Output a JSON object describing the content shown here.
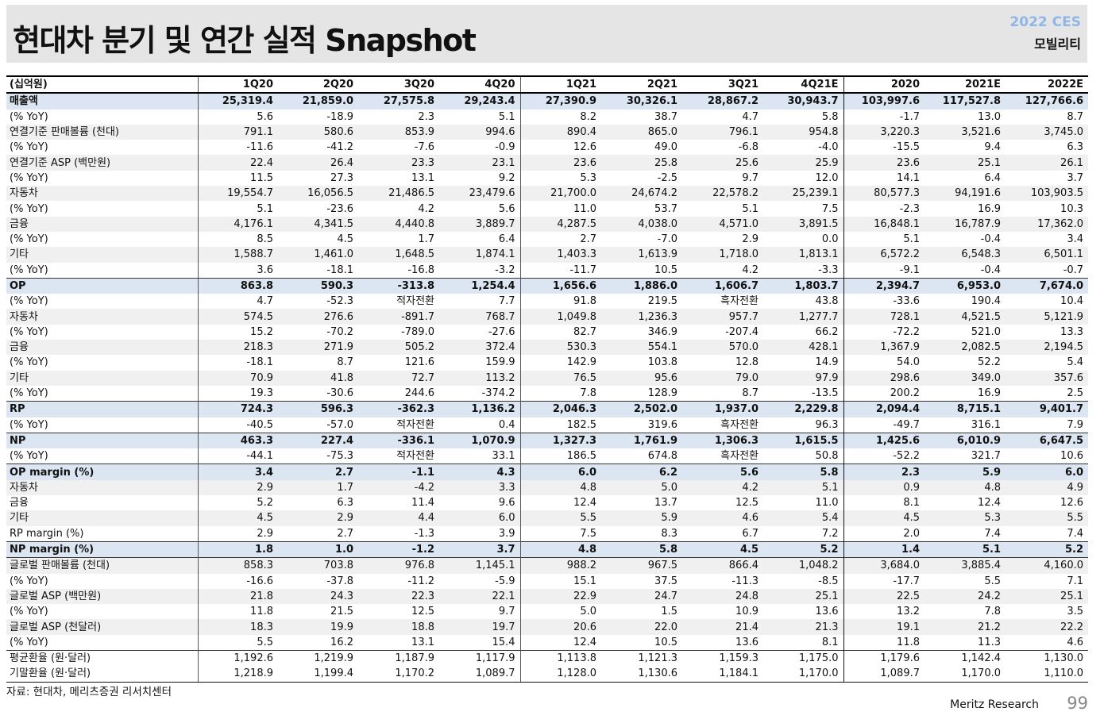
{
  "header": {
    "title": "현대차 분기 및 연간 실적 Snapshot",
    "tag_top": "2022 CES",
    "tag_bottom": "모빌리티"
  },
  "table": {
    "unit_label": "(십억원)",
    "columns": [
      "1Q20",
      "2Q20",
      "3Q20",
      "4Q20",
      "1Q21",
      "2Q21",
      "3Q21",
      "4Q21E",
      "2020",
      "2021E",
      "2022E"
    ],
    "rows": [
      {
        "label": "매출액",
        "values": [
          "25,319.4",
          "21,859.0",
          "27,575.8",
          "29,243.4",
          "27,390.9",
          "30,326.1",
          "28,867.2",
          "30,943.7",
          "103,997.6",
          "117,527.8",
          "127,766.6"
        ]
      },
      {
        "label": "(% YoY)",
        "values": [
          "5.6",
          "-18.9",
          "2.3",
          "5.1",
          "8.2",
          "38.7",
          "4.7",
          "5.8",
          "-1.7",
          "13.0",
          "8.7"
        ]
      },
      {
        "label": "연결기준 판매볼륨 (천대)",
        "values": [
          "791.1",
          "580.6",
          "853.9",
          "994.6",
          "890.4",
          "865.0",
          "796.1",
          "954.8",
          "3,220.3",
          "3,521.6",
          "3,745.0"
        ]
      },
      {
        "label": "(% YoY)",
        "values": [
          "-11.6",
          "-41.2",
          "-7.6",
          "-0.9",
          "12.6",
          "49.0",
          "-6.8",
          "-4.0",
          "-15.5",
          "9.4",
          "6.3"
        ]
      },
      {
        "label": "연결기준 ASP (백만원)",
        "values": [
          "22.4",
          "26.4",
          "23.3",
          "23.1",
          "23.6",
          "25.8",
          "25.6",
          "25.9",
          "23.6",
          "25.1",
          "26.1"
        ]
      },
      {
        "label": "(% YoY)",
        "values": [
          "11.5",
          "27.3",
          "13.1",
          "9.2",
          "5.3",
          "-2.5",
          "9.7",
          "12.0",
          "14.1",
          "6.4",
          "3.7"
        ]
      },
      {
        "label": "자동차",
        "values": [
          "19,554.7",
          "16,056.5",
          "21,486.5",
          "23,479.6",
          "21,700.0",
          "24,674.2",
          "22,578.2",
          "25,239.1",
          "80,577.3",
          "94,191.6",
          "103,903.5"
        ]
      },
      {
        "label": "(% YoY)",
        "values": [
          "5.1",
          "-23.6",
          "4.2",
          "5.6",
          "11.0",
          "53.7",
          "5.1",
          "7.5",
          "-2.3",
          "16.9",
          "10.3"
        ]
      },
      {
        "label": "금융",
        "values": [
          "4,176.1",
          "4,341.5",
          "4,440.8",
          "3,889.7",
          "4,287.5",
          "4,038.0",
          "4,571.0",
          "3,891.5",
          "16,848.1",
          "16,787.9",
          "17,362.0"
        ]
      },
      {
        "label": "(% YoY)",
        "values": [
          "8.5",
          "4.5",
          "1.7",
          "6.4",
          "2.7",
          "-7.0",
          "2.9",
          "0.0",
          "5.1",
          "-0.4",
          "3.4"
        ]
      },
      {
        "label": "기타",
        "values": [
          "1,588.7",
          "1,461.0",
          "1,648.5",
          "1,874.1",
          "1,403.3",
          "1,613.9",
          "1,718.0",
          "1,813.1",
          "6,572.2",
          "6,548.3",
          "6,501.1"
        ]
      },
      {
        "label": "(% YoY)",
        "values": [
          "3.6",
          "-18.1",
          "-16.8",
          "-3.2",
          "-11.7",
          "10.5",
          "4.2",
          "-3.3",
          "-9.1",
          "-0.4",
          "-0.7"
        ]
      },
      {
        "label": "OP",
        "values": [
          "863.8",
          "590.3",
          "-313.8",
          "1,254.4",
          "1,656.6",
          "1,886.0",
          "1,606.7",
          "1,803.7",
          "2,394.7",
          "6,953.0",
          "7,674.0"
        ]
      },
      {
        "label": "(% YoY)",
        "values": [
          "4.7",
          "-52.3",
          "적자전환",
          "7.7",
          "91.8",
          "219.5",
          "흑자전환",
          "43.8",
          "-33.6",
          "190.4",
          "10.4"
        ]
      },
      {
        "label": "자동차",
        "values": [
          "574.5",
          "276.6",
          "-891.7",
          "768.7",
          "1,049.8",
          "1,236.3",
          "957.7",
          "1,277.7",
          "728.1",
          "4,521.5",
          "5,121.9"
        ]
      },
      {
        "label": "(% YoY)",
        "values": [
          "15.2",
          "-70.2",
          "-789.0",
          "-27.6",
          "82.7",
          "346.9",
          "-207.4",
          "66.2",
          "-72.2",
          "521.0",
          "13.3"
        ]
      },
      {
        "label": "금융",
        "values": [
          "218.3",
          "271.9",
          "505.2",
          "372.4",
          "530.3",
          "554.1",
          "570.0",
          "428.1",
          "1,367.9",
          "2,082.5",
          "2,194.5"
        ]
      },
      {
        "label": "(% YoY)",
        "values": [
          "-18.1",
          "8.7",
          "121.6",
          "159.9",
          "142.9",
          "103.8",
          "12.8",
          "14.9",
          "54.0",
          "52.2",
          "5.4"
        ]
      },
      {
        "label": "기타",
        "values": [
          "70.9",
          "41.8",
          "72.7",
          "113.2",
          "76.5",
          "95.6",
          "79.0",
          "97.9",
          "298.6",
          "349.0",
          "357.6"
        ]
      },
      {
        "label": "(% YoY)",
        "values": [
          "19.3",
          "-30.6",
          "244.6",
          "-374.2",
          "7.8",
          "128.9",
          "8.7",
          "-13.5",
          "200.2",
          "16.9",
          "2.5"
        ]
      },
      {
        "label": "RP",
        "values": [
          "724.3",
          "596.3",
          "-362.3",
          "1,136.2",
          "2,046.3",
          "2,502.0",
          "1,937.0",
          "2,229.8",
          "2,094.4",
          "8,715.1",
          "9,401.7"
        ]
      },
      {
        "label": "(% YoY)",
        "values": [
          "-40.5",
          "-57.0",
          "적자전환",
          "0.4",
          "182.5",
          "319.6",
          "흑자전환",
          "96.3",
          "-49.7",
          "316.1",
          "7.9"
        ]
      },
      {
        "label": "NP",
        "values": [
          "463.3",
          "227.4",
          "-336.1",
          "1,070.9",
          "1,327.3",
          "1,761.9",
          "1,306.3",
          "1,615.5",
          "1,425.6",
          "6,010.9",
          "6,647.5"
        ]
      },
      {
        "label": "(% YoY)",
        "values": [
          "-44.1",
          "-75.3",
          "적자전환",
          "33.1",
          "186.5",
          "674.8",
          "흑자전환",
          "50.8",
          "-52.2",
          "321.7",
          "10.6"
        ]
      },
      {
        "label": "OP margin (%)",
        "values": [
          "3.4",
          "2.7",
          "-1.1",
          "4.3",
          "6.0",
          "6.2",
          "5.6",
          "5.8",
          "2.3",
          "5.9",
          "6.0"
        ]
      },
      {
        "label": "자동차",
        "values": [
          "2.9",
          "1.7",
          "-4.2",
          "3.3",
          "4.8",
          "5.0",
          "4.2",
          "5.1",
          "0.9",
          "4.8",
          "4.9"
        ]
      },
      {
        "label": "금융",
        "values": [
          "5.2",
          "6.3",
          "11.4",
          "9.6",
          "12.4",
          "13.7",
          "12.5",
          "11.0",
          "8.1",
          "12.4",
          "12.6"
        ]
      },
      {
        "label": "기타",
        "values": [
          "4.5",
          "2.9",
          "4.4",
          "6.0",
          "5.5",
          "5.9",
          "4.6",
          "5.4",
          "4.5",
          "5.3",
          "5.5"
        ]
      },
      {
        "label": "RP margin (%)",
        "values": [
          "2.9",
          "2.7",
          "-1.3",
          "3.9",
          "7.5",
          "8.3",
          "6.7",
          "7.2",
          "2.0",
          "7.4",
          "7.4"
        ]
      },
      {
        "label": "NP margin (%)",
        "values": [
          "1.8",
          "1.0",
          "-1.2",
          "3.7",
          "4.8",
          "5.8",
          "4.5",
          "5.2",
          "1.4",
          "5.1",
          "5.2"
        ]
      },
      {
        "label": "글로벌 판매볼륨 (천대)",
        "values": [
          "858.3",
          "703.8",
          "976.8",
          "1,145.1",
          "988.2",
          "967.5",
          "866.4",
          "1,048.2",
          "3,684.0",
          "3,885.4",
          "4,160.0"
        ]
      },
      {
        "label": "(% YoY)",
        "values": [
          "-16.6",
          "-37.8",
          "-11.2",
          "-5.9",
          "15.1",
          "37.5",
          "-11.3",
          "-8.5",
          "-17.7",
          "5.5",
          "7.1"
        ]
      },
      {
        "label": "글로벌 ASP (백만원)",
        "values": [
          "21.8",
          "24.3",
          "22.3",
          "22.1",
          "22.9",
          "24.7",
          "24.8",
          "25.1",
          "22.5",
          "24.2",
          "25.1"
        ]
      },
      {
        "label": "(% YoY)",
        "values": [
          "11.8",
          "21.5",
          "12.5",
          "9.7",
          "5.0",
          "1.5",
          "10.9",
          "13.6",
          "13.2",
          "7.8",
          "3.5"
        ]
      },
      {
        "label": "글로벌 ASP (천달러)",
        "values": [
          "18.3",
          "19.9",
          "18.8",
          "19.7",
          "20.6",
          "22.0",
          "21.4",
          "21.3",
          "19.1",
          "21.2",
          "22.2"
        ]
      },
      {
        "label": "(% YoY)",
        "values": [
          "5.5",
          "16.2",
          "13.1",
          "15.4",
          "12.4",
          "10.5",
          "13.6",
          "8.1",
          "11.8",
          "11.3",
          "4.6"
        ]
      },
      {
        "label": "평균환율 (원·달러)",
        "values": [
          "1,192.6",
          "1,219.9",
          "1,187.9",
          "1,117.9",
          "1,113.8",
          "1,121.3",
          "1,159.3",
          "1,175.0",
          "1,179.6",
          "1,142.4",
          "1,130.0"
        ]
      },
      {
        "label": "기말환율 (원·달러)",
        "values": [
          "1,218.9",
          "1,199.4",
          "1,170.2",
          "1,089.7",
          "1,128.0",
          "1,130.6",
          "1,184.1",
          "1,170.0",
          "1,089.7",
          "1,170.0",
          "1,110.0"
        ]
      }
    ]
  },
  "footer": {
    "source": "자료: 현대차, 메리츠증권 리서치센터",
    "brand": "Meritz Research",
    "page_number": "99"
  }
}
